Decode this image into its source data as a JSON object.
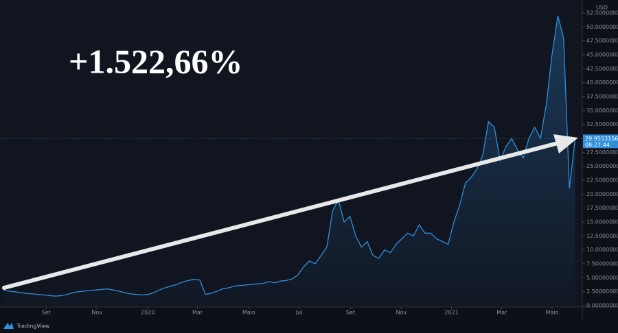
{
  "chart_data": {
    "type": "area",
    "annotation": "+1.522,66%",
    "currency": "USD",
    "brand": "TradingView",
    "last_price": 29.95531561,
    "countdown": "08:27:44",
    "color": "#2f8fdc",
    "values": [
      2.8,
      2.6,
      2.5,
      2.3,
      2.2,
      2.1,
      2.0,
      1.9,
      1.8,
      1.7,
      1.8,
      2.0,
      2.3,
      2.5,
      2.6,
      2.7,
      2.8,
      2.9,
      3.0,
      2.8,
      2.6,
      2.3,
      2.1,
      2.0,
      1.9,
      2.0,
      2.3,
      2.8,
      3.2,
      3.5,
      3.8,
      4.2,
      4.5,
      4.7,
      4.6,
      2.0,
      2.2,
      2.6,
      3.0,
      3.2,
      3.5,
      3.6,
      3.7,
      3.8,
      3.9,
      4.0,
      4.3,
      4.1,
      4.4,
      4.5,
      4.8,
      5.5,
      7.0,
      8.0,
      7.5,
      9.0,
      10.5,
      17.0,
      19.0,
      15.0,
      16.0,
      12.5,
      10.5,
      11.5,
      9.0,
      8.5,
      10.0,
      9.5,
      11.0,
      12.0,
      13.0,
      12.5,
      14.5,
      13.0,
      13.0,
      12.0,
      11.5,
      11.0,
      15.0,
      18.0,
      22.0,
      23.0,
      24.5,
      27.0,
      33.0,
      32.0,
      26.0,
      28.5,
      30.0,
      28.0,
      26.5,
      30.0,
      32.0,
      30.0,
      36.0,
      45.0,
      52.0,
      48.0,
      21.0,
      29.96
    ],
    "xlim": [
      0,
      100
    ],
    "xticks": [
      {
        "value": 7.4,
        "label": "Set"
      },
      {
        "value": 16.2,
        "label": "Nov"
      },
      {
        "value": 25.0,
        "label": "2020"
      },
      {
        "value": 33.6,
        "label": "Mar"
      },
      {
        "value": 42.5,
        "label": "Maio"
      },
      {
        "value": 51.2,
        "label": "Jul"
      },
      {
        "value": 60.1,
        "label": "Set"
      },
      {
        "value": 68.9,
        "label": "Nov"
      },
      {
        "value": 77.6,
        "label": "2021"
      },
      {
        "value": 86.3,
        "label": "Mar"
      },
      {
        "value": 95.0,
        "label": "Maio"
      }
    ],
    "ylim": [
      0,
      52.5
    ],
    "yticks": [
      {
        "value": 0,
        "label": "0.00000000"
      },
      {
        "value": 2.5,
        "label": "2.50000000"
      },
      {
        "value": 5,
        "label": "5.00000000"
      },
      {
        "value": 7.5,
        "label": "7.50000000"
      },
      {
        "value": 10,
        "label": "10.00000000"
      },
      {
        "value": 12.5,
        "label": "12.50000000"
      },
      {
        "value": 15,
        "label": "15.00000000"
      },
      {
        "value": 17.5,
        "label": "17.50000000"
      },
      {
        "value": 20,
        "label": "20.00000000"
      },
      {
        "value": 22.5,
        "label": "22.50000000"
      },
      {
        "value": 25,
        "label": "25.00000000"
      },
      {
        "value": 27.5,
        "label": "27.50000000"
      },
      {
        "value": 30,
        "label": "30.00000000"
      },
      {
        "value": 32.5,
        "label": "32.50000000"
      },
      {
        "value": 35,
        "label": "35.00000000"
      },
      {
        "value": 37.5,
        "label": "37.50000000"
      },
      {
        "value": 40,
        "label": "40.00000000"
      },
      {
        "value": 42.5,
        "label": "42.50000000"
      },
      {
        "value": 45,
        "label": "45.00000000"
      },
      {
        "value": 47.5,
        "label": "47.50000000"
      },
      {
        "value": 50,
        "label": "50.00000000"
      },
      {
        "value": 52.5,
        "label": "52.50000000"
      }
    ]
  }
}
